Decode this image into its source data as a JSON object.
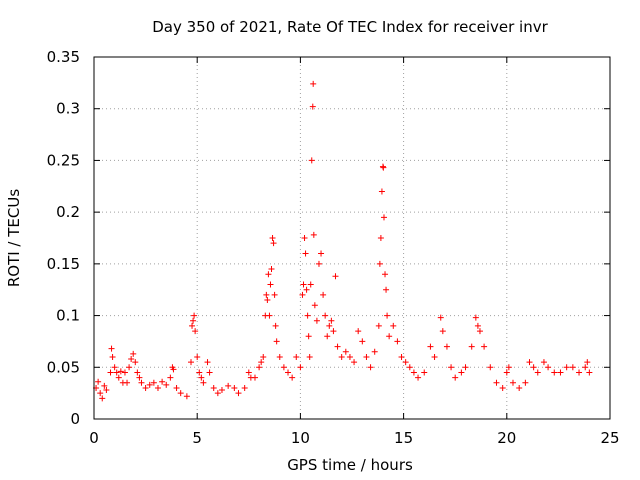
{
  "chart_data": {
    "type": "scatter",
    "title": "Day 350 of 2021, Rate Of TEC Index for receiver invr",
    "xlabel": "GPS time / hours",
    "ylabel": "ROTI / TECUs",
    "xlim": [
      0,
      25
    ],
    "ylim": [
      0,
      0.35
    ],
    "x_ticks": [
      0,
      5,
      10,
      15,
      20,
      25
    ],
    "x_tick_labels": [
      "0",
      "5",
      "10",
      "15",
      "20",
      "25"
    ],
    "y_ticks": [
      0,
      0.05,
      0.1,
      0.15,
      0.2,
      0.25,
      0.3,
      0.35
    ],
    "y_tick_labels": [
      "0",
      "0.05",
      "0.1",
      "0.15",
      "0.2",
      "0.25",
      "0.3",
      "0.35"
    ],
    "grid": true,
    "marker": "+",
    "color": "#ff0000",
    "series": [
      {
        "points": [
          [
            0.1,
            0.03
          ],
          [
            0.2,
            0.036
          ],
          [
            0.3,
            0.025
          ],
          [
            0.4,
            0.02
          ],
          [
            0.5,
            0.032
          ],
          [
            0.6,
            0.028
          ],
          [
            0.8,
            0.045
          ],
          [
            0.85,
            0.068
          ],
          [
            0.9,
            0.06
          ],
          [
            1.0,
            0.05
          ],
          [
            1.1,
            0.045
          ],
          [
            1.2,
            0.04
          ],
          [
            1.3,
            0.046
          ],
          [
            1.4,
            0.035
          ],
          [
            1.5,
            0.045
          ],
          [
            1.6,
            0.035
          ],
          [
            1.7,
            0.05
          ],
          [
            1.8,
            0.058
          ],
          [
            1.9,
            0.063
          ],
          [
            2.0,
            0.055
          ],
          [
            2.1,
            0.045
          ],
          [
            2.2,
            0.04
          ],
          [
            2.3,
            0.035
          ],
          [
            2.5,
            0.03
          ],
          [
            2.7,
            0.033
          ],
          [
            2.9,
            0.035
          ],
          [
            3.1,
            0.03
          ],
          [
            3.3,
            0.036
          ],
          [
            3.5,
            0.033
          ],
          [
            3.7,
            0.04
          ],
          [
            3.8,
            0.05
          ],
          [
            3.85,
            0.048
          ],
          [
            4.0,
            0.03
          ],
          [
            4.2,
            0.025
          ],
          [
            4.5,
            0.022
          ],
          [
            4.7,
            0.055
          ],
          [
            4.75,
            0.09
          ],
          [
            4.8,
            0.095
          ],
          [
            4.85,
            0.1
          ],
          [
            4.9,
            0.085
          ],
          [
            5.0,
            0.06
          ],
          [
            5.1,
            0.045
          ],
          [
            5.2,
            0.04
          ],
          [
            5.3,
            0.035
          ],
          [
            5.5,
            0.055
          ],
          [
            5.6,
            0.045
          ],
          [
            5.8,
            0.03
          ],
          [
            6.0,
            0.025
          ],
          [
            6.2,
            0.028
          ],
          [
            6.5,
            0.032
          ],
          [
            6.8,
            0.03
          ],
          [
            7.0,
            0.025
          ],
          [
            7.3,
            0.03
          ],
          [
            7.5,
            0.045
          ],
          [
            7.6,
            0.04
          ],
          [
            7.8,
            0.04
          ],
          [
            8.0,
            0.05
          ],
          [
            8.1,
            0.055
          ],
          [
            8.2,
            0.06
          ],
          [
            8.3,
            0.1
          ],
          [
            8.35,
            0.12
          ],
          [
            8.4,
            0.115
          ],
          [
            8.45,
            0.14
          ],
          [
            8.5,
            0.1
          ],
          [
            8.55,
            0.13
          ],
          [
            8.6,
            0.145
          ],
          [
            8.65,
            0.175
          ],
          [
            8.7,
            0.17
          ],
          [
            8.75,
            0.12
          ],
          [
            8.8,
            0.09
          ],
          [
            8.85,
            0.075
          ],
          [
            9.0,
            0.06
          ],
          [
            9.2,
            0.05
          ],
          [
            9.4,
            0.045
          ],
          [
            9.6,
            0.04
          ],
          [
            9.8,
            0.06
          ],
          [
            10.0,
            0.05
          ],
          [
            10.1,
            0.12
          ],
          [
            10.15,
            0.13
          ],
          [
            10.2,
            0.175
          ],
          [
            10.25,
            0.16
          ],
          [
            10.3,
            0.125
          ],
          [
            10.35,
            0.1
          ],
          [
            10.4,
            0.08
          ],
          [
            10.45,
            0.06
          ],
          [
            10.5,
            0.13
          ],
          [
            10.55,
            0.25
          ],
          [
            10.6,
            0.302
          ],
          [
            10.62,
            0.324
          ],
          [
            10.65,
            0.178
          ],
          [
            10.7,
            0.11
          ],
          [
            10.8,
            0.095
          ],
          [
            10.9,
            0.15
          ],
          [
            11.0,
            0.16
          ],
          [
            11.1,
            0.12
          ],
          [
            11.2,
            0.1
          ],
          [
            11.3,
            0.08
          ],
          [
            11.4,
            0.09
          ],
          [
            11.5,
            0.095
          ],
          [
            11.6,
            0.085
          ],
          [
            11.7,
            0.138
          ],
          [
            11.8,
            0.07
          ],
          [
            12.0,
            0.06
          ],
          [
            12.2,
            0.065
          ],
          [
            12.4,
            0.06
          ],
          [
            12.6,
            0.055
          ],
          [
            12.8,
            0.085
          ],
          [
            13.0,
            0.075
          ],
          [
            13.2,
            0.06
          ],
          [
            13.4,
            0.05
          ],
          [
            13.6,
            0.065
          ],
          [
            13.8,
            0.09
          ],
          [
            13.85,
            0.15
          ],
          [
            13.9,
            0.175
          ],
          [
            13.95,
            0.22
          ],
          [
            14.0,
            0.244
          ],
          [
            14.02,
            0.243
          ],
          [
            14.05,
            0.195
          ],
          [
            14.1,
            0.14
          ],
          [
            14.15,
            0.125
          ],
          [
            14.2,
            0.1
          ],
          [
            14.3,
            0.08
          ],
          [
            14.5,
            0.09
          ],
          [
            14.7,
            0.075
          ],
          [
            14.9,
            0.06
          ],
          [
            15.1,
            0.055
          ],
          [
            15.3,
            0.05
          ],
          [
            15.5,
            0.045
          ],
          [
            15.7,
            0.04
          ],
          [
            16.0,
            0.045
          ],
          [
            16.3,
            0.07
          ],
          [
            16.5,
            0.06
          ],
          [
            16.8,
            0.098
          ],
          [
            16.9,
            0.085
          ],
          [
            17.1,
            0.07
          ],
          [
            17.3,
            0.05
          ],
          [
            17.5,
            0.04
          ],
          [
            17.8,
            0.045
          ],
          [
            18.0,
            0.05
          ],
          [
            18.3,
            0.07
          ],
          [
            18.5,
            0.098
          ],
          [
            18.6,
            0.09
          ],
          [
            18.7,
            0.085
          ],
          [
            18.9,
            0.07
          ],
          [
            19.2,
            0.05
          ],
          [
            19.5,
            0.035
          ],
          [
            19.8,
            0.03
          ],
          [
            20.0,
            0.045
          ],
          [
            20.1,
            0.05
          ],
          [
            20.3,
            0.035
          ],
          [
            20.6,
            0.03
          ],
          [
            20.9,
            0.035
          ],
          [
            21.1,
            0.055
          ],
          [
            21.3,
            0.05
          ],
          [
            21.5,
            0.045
          ],
          [
            21.8,
            0.055
          ],
          [
            22.0,
            0.05
          ],
          [
            22.3,
            0.045
          ],
          [
            22.6,
            0.045
          ],
          [
            22.9,
            0.05
          ],
          [
            23.2,
            0.05
          ],
          [
            23.5,
            0.045
          ],
          [
            23.8,
            0.05
          ],
          [
            23.9,
            0.055
          ],
          [
            24.0,
            0.045
          ]
        ]
      }
    ]
  }
}
